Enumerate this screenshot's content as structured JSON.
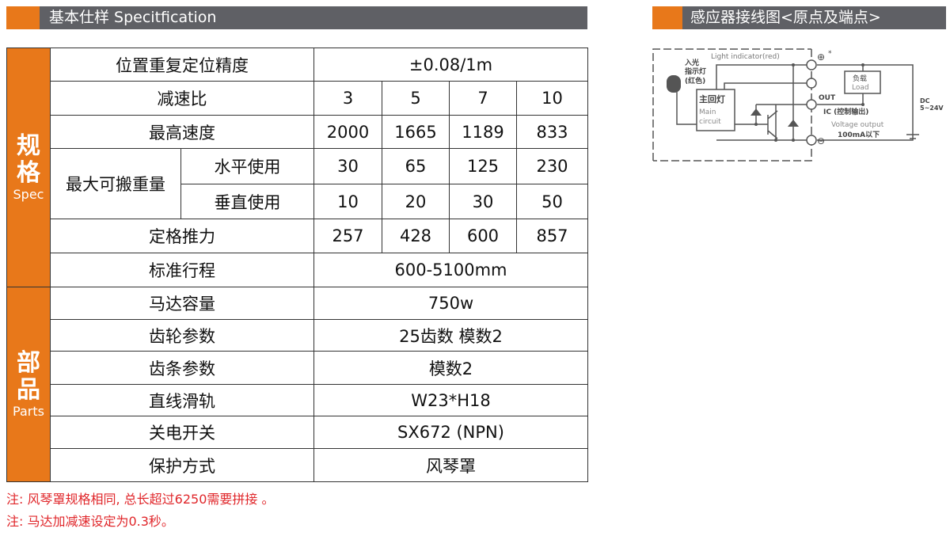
{
  "left_header": {
    "title": "基本仕样 Specitfication"
  },
  "right_header": {
    "title": "感应器接线图<原点及端点>"
  },
  "accent_color": "#e8781a",
  "header_color": "#5f6065",
  "spec": {
    "side_cn": "规格",
    "side_en": "Spec",
    "rows": {
      "precision": {
        "label": "位置重复定位精度",
        "value": "±0.08/1m"
      },
      "ratio": {
        "label": "减速比",
        "values": [
          "3",
          "5",
          "7",
          "10"
        ]
      },
      "speed": {
        "label": "最高速度",
        "values": [
          "2000",
          "1665",
          "1189",
          "833"
        ]
      },
      "payload": {
        "label": "最大可搬重量",
        "horizontal": {
          "label": "水平使用",
          "values": [
            "30",
            "65",
            "125",
            "230"
          ]
        },
        "vertical": {
          "label": "垂直使用",
          "values": [
            "10",
            "20",
            "30",
            "50"
          ]
        }
      },
      "thrust": {
        "label": "定格推力",
        "values": [
          "257",
          "428",
          "600",
          "857"
        ]
      },
      "stroke": {
        "label": "标准行程",
        "value": "600-5100mm"
      }
    }
  },
  "parts": {
    "side_cn": "部品",
    "side_en": "Parts",
    "rows": [
      {
        "label": "马达容量",
        "value": "750w"
      },
      {
        "label": "齿轮参数",
        "value": "25齿数  模数2"
      },
      {
        "label": "齿条参数",
        "value": "模数2"
      },
      {
        "label": "直线滑轨",
        "value": "W23*H18"
      },
      {
        "label": "关电开关",
        "value": "SX672 (NPN)"
      },
      {
        "label": "保护方式",
        "value": "风琴罩"
      }
    ]
  },
  "notes": [
    "注: 风琴罩规格相同, 总长超过6250需要拼接 。",
    "注: 马达加减速设定为0.3秒。"
  ],
  "diagram": {
    "light_indicator": "Light indicator(red)",
    "indicator_cn": "入光",
    "indicator_cn2": "指示灯",
    "indicator_cn3": "(红色)",
    "main_cn": "主回灯",
    "main_en1": "Main",
    "main_en2": "circuit",
    "load_cn": "负载",
    "load_en": "Load",
    "out": "OUT",
    "ic": "IC (控制输出)",
    "voltage": "Voltage output",
    "current": "100mA以下",
    "dc": "DC",
    "dc_range": "5~24V",
    "plus": "⊕",
    "minus": "⊖",
    "star": "*"
  }
}
